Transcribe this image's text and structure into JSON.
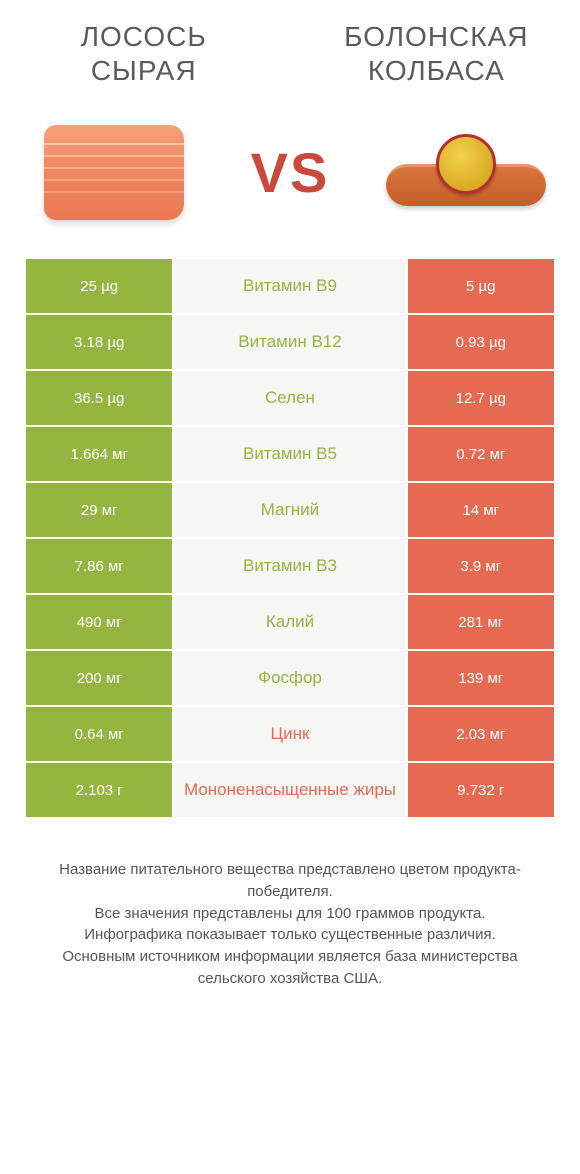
{
  "header": {
    "left_title": "ЛОСОСЬ СЫРАЯ",
    "right_title": "БОЛОНСКАЯ КОЛБАСА",
    "vs": "VS"
  },
  "colors": {
    "left_winner": "#95b541",
    "right_winner": "#e56a51",
    "center_bg": "#f6f6f5",
    "left_text_color": "#95b541",
    "right_text_color": "#e56a51",
    "body_bg": "#ffffff"
  },
  "rows": [
    {
      "nutrient": "Витамин B9",
      "left": "25 µg",
      "right": "5 µg",
      "winner": "left"
    },
    {
      "nutrient": "Витамин B12",
      "left": "3.18 µg",
      "right": "0.93 µg",
      "winner": "left"
    },
    {
      "nutrient": "Селен",
      "left": "36.5 µg",
      "right": "12.7 µg",
      "winner": "left"
    },
    {
      "nutrient": "Витамин B5",
      "left": "1.664 мг",
      "right": "0.72 мг",
      "winner": "left"
    },
    {
      "nutrient": "Магний",
      "left": "29 мг",
      "right": "14 мг",
      "winner": "left"
    },
    {
      "nutrient": "Витамин B3",
      "left": "7.86 мг",
      "right": "3.9 мг",
      "winner": "left"
    },
    {
      "nutrient": "Калий",
      "left": "490 мг",
      "right": "281 мг",
      "winner": "left"
    },
    {
      "nutrient": "Фосфор",
      "left": "200 мг",
      "right": "139 мг",
      "winner": "left"
    },
    {
      "nutrient": "Цинк",
      "left": "0.64 мг",
      "right": "2.03 мг",
      "winner": "right"
    },
    {
      "nutrient": "Мононенасыщенные жиры",
      "left": "2.103 г",
      "right": "9.732 г",
      "winner": "right"
    }
  ],
  "footer": {
    "line1": "Название питательного вещества представлено цветом продукта-победителя.",
    "line2": "Все значения представлены для 100 граммов продукта.",
    "line3": "Инфографика показывает только существенные различия.",
    "line4": "Основным источником информации является база министерства сельского хозяйства США."
  }
}
